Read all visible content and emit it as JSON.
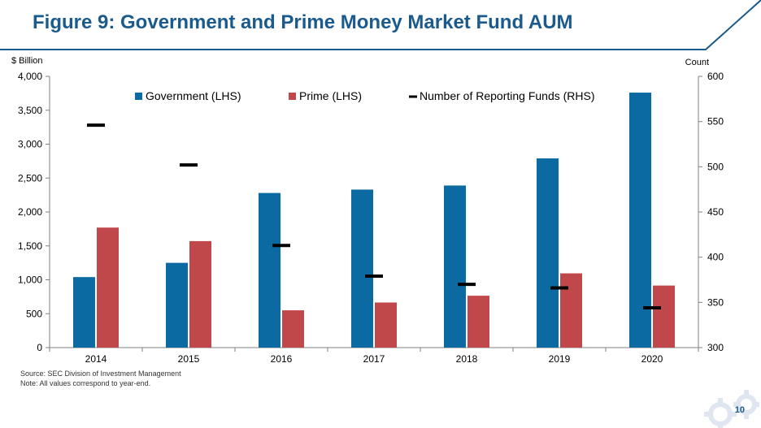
{
  "title": "Figure 9: Government and Prime Money Market Fund AUM",
  "footer": {
    "source": "Source: SEC Division of Investment Management",
    "note": "Note: All values correspond to year-end.",
    "page_number": "10"
  },
  "colors": {
    "title": "#1a5a8c",
    "government": "#0a6aa1",
    "prime": "#c0474a",
    "funds": "#000000",
    "rule": "#1a5a8c"
  },
  "chart_data": {
    "type": "bar",
    "categories": [
      "2014",
      "2015",
      "2016",
      "2017",
      "2018",
      "2019",
      "2020"
    ],
    "ylabel": "$ Billion",
    "y2label": "Count",
    "ylim": [
      0,
      4000
    ],
    "y2lim": [
      300,
      600
    ],
    "yticks": [
      "0",
      "500",
      "1,000",
      "1,500",
      "2,000",
      "2,500",
      "3,000",
      "3,500",
      "4,000"
    ],
    "y2ticks": [
      "300",
      "350",
      "400",
      "450",
      "500",
      "550",
      "600"
    ],
    "legend": "top",
    "grid": false,
    "series": [
      {
        "name": "Government (LHS)",
        "axis": "left",
        "kind": "bar",
        "values": [
          1040,
          1250,
          2280,
          2330,
          2390,
          2790,
          3760
        ]
      },
      {
        "name": "Prime (LHS)",
        "axis": "left",
        "kind": "bar",
        "values": [
          1770,
          1570,
          550,
          665,
          765,
          1095,
          915
        ]
      },
      {
        "name": "Number of Reporting Funds (RHS)",
        "axis": "right",
        "kind": "marker",
        "values": [
          546,
          502,
          413,
          379,
          370,
          366,
          344
        ]
      }
    ]
  }
}
